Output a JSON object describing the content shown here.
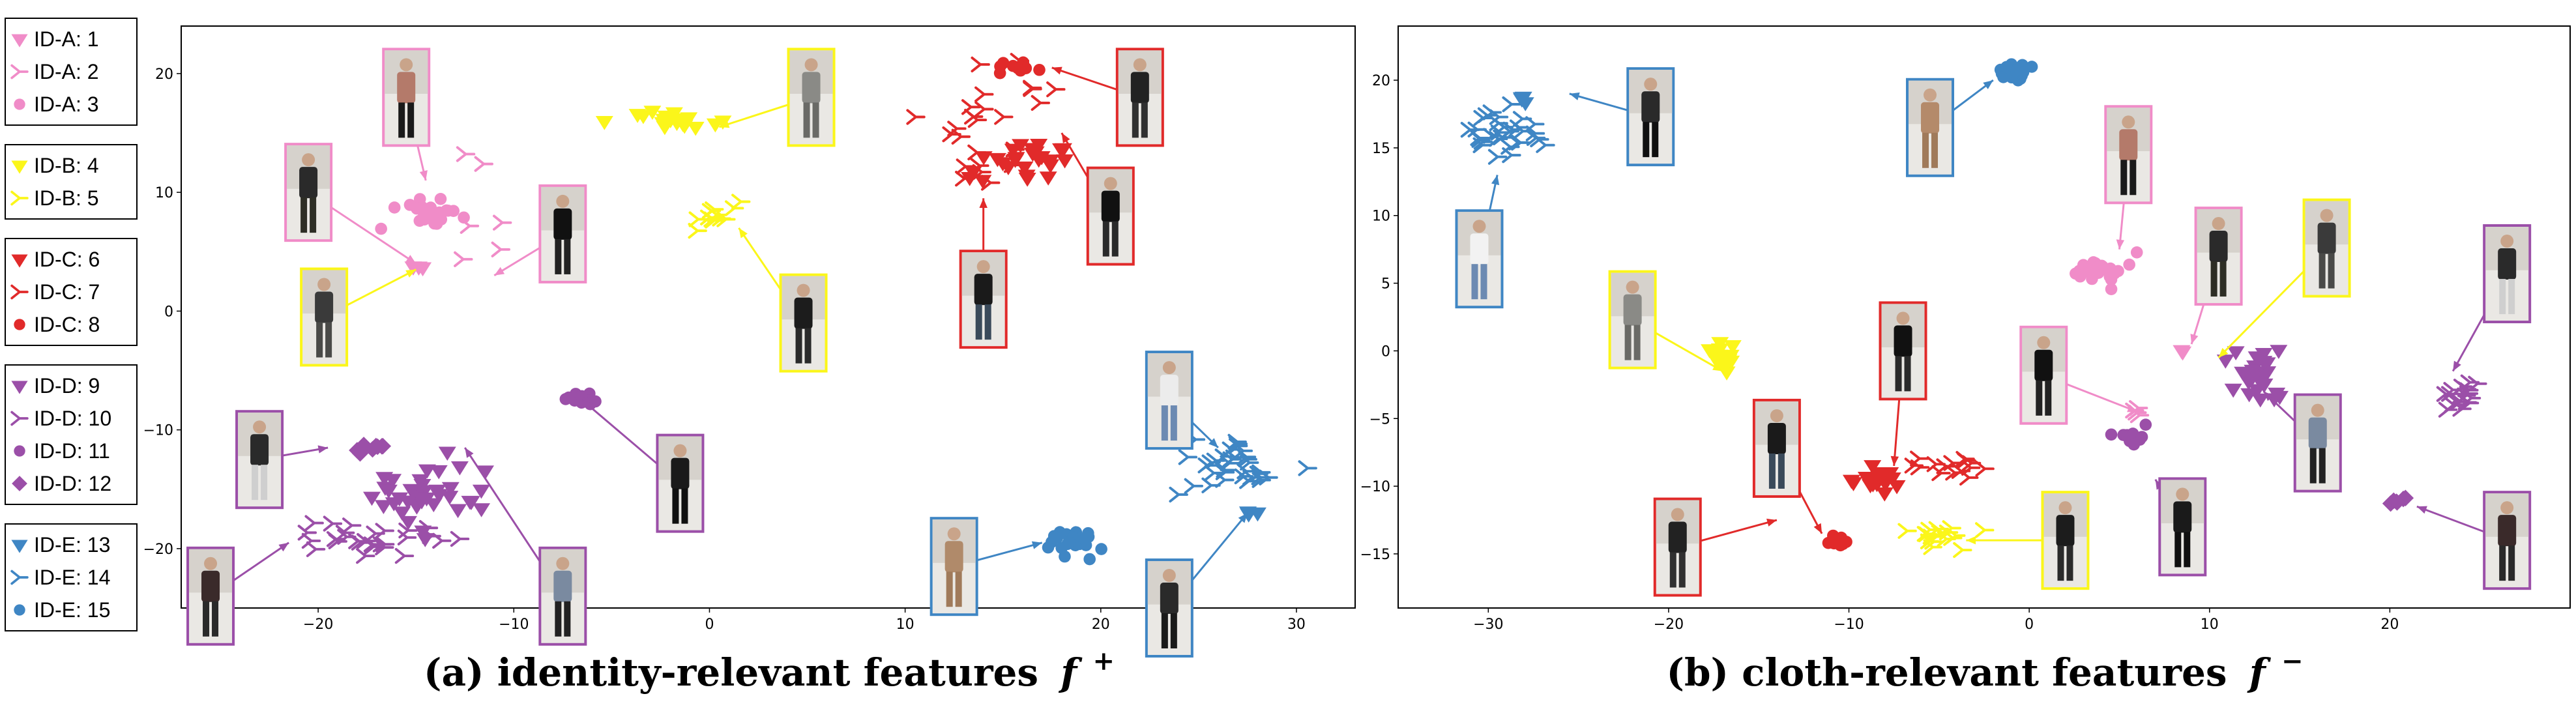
{
  "colors": {
    "A": "#f08cc8",
    "B": "#fbf61a",
    "C": "#e12a2a",
    "D": "#9b4fa8",
    "E": "#3f86c4"
  },
  "legend": [
    {
      "group": "A",
      "items": [
        {
          "label": "ID-A: 1",
          "marker": "tri-down"
        },
        {
          "label": "ID-A: 2",
          "marker": "tri-right"
        },
        {
          "label": "ID-A: 3",
          "marker": "circle"
        }
      ]
    },
    {
      "group": "B",
      "items": [
        {
          "label": "ID-B: 4",
          "marker": "tri-down"
        },
        {
          "label": "ID-B: 5",
          "marker": "tri-right"
        }
      ]
    },
    {
      "group": "C",
      "items": [
        {
          "label": "ID-C: 6",
          "marker": "tri-down"
        },
        {
          "label": "ID-C: 7",
          "marker": "tri-right"
        },
        {
          "label": "ID-C: 8",
          "marker": "circle"
        }
      ]
    },
    {
      "group": "D",
      "items": [
        {
          "label": "ID-D: 9",
          "marker": "tri-down"
        },
        {
          "label": "ID-D: 10",
          "marker": "tri-right"
        },
        {
          "label": "ID-D: 11",
          "marker": "circle"
        },
        {
          "label": "ID-D: 12",
          "marker": "diamond"
        }
      ]
    },
    {
      "group": "E",
      "items": [
        {
          "label": "ID-E: 13",
          "marker": "tri-down"
        },
        {
          "label": "ID-E: 14",
          "marker": "tri-right"
        },
        {
          "label": "ID-E: 15",
          "marker": "circle"
        }
      ]
    }
  ],
  "chart_data": [
    {
      "type": "scatter",
      "caption": "(a) identity-relevant features",
      "caption_symbol": "f",
      "caption_sup": "+",
      "xlim": [
        -27,
        33
      ],
      "ylim": [
        -25,
        24
      ],
      "xticks": [
        -20,
        -10,
        0,
        10,
        20,
        30
      ],
      "yticks": [
        -20,
        -10,
        0,
        10,
        20
      ],
      "series": [
        {
          "id": 1,
          "group": "A",
          "marker": "tri-down",
          "center": [
            -15,
            3.5
          ],
          "spread": [
            0.3,
            0.4
          ],
          "n": 3
        },
        {
          "id": 2,
          "group": "A",
          "marker": "tri-right",
          "center": [
            -11,
            7
          ],
          "spread": [
            2.8,
            5.5
          ],
          "n": 7
        },
        {
          "id": 3,
          "group": "A",
          "marker": "circle",
          "center": [
            -14.5,
            8.5
          ],
          "spread": [
            1.6,
            1.6
          ],
          "n": 22
        },
        {
          "id": 4,
          "group": "B",
          "marker": "tri-down",
          "center": [
            -2,
            16
          ],
          "spread": [
            2.0,
            0.9
          ],
          "n": 20
        },
        {
          "id": 5,
          "group": "B",
          "marker": "tri-right",
          "center": [
            0.5,
            8
          ],
          "spread": [
            1.2,
            1.2
          ],
          "n": 12
        },
        {
          "id": 6,
          "group": "C",
          "marker": "tri-down",
          "center": [
            16,
            12.5
          ],
          "spread": [
            2.4,
            1.6
          ],
          "n": 26
        },
        {
          "id": 7,
          "group": "C",
          "marker": "tri-right",
          "center": [
            14,
            15
          ],
          "spread": [
            2.4,
            4.5
          ],
          "n": 24
        },
        {
          "id": 8,
          "group": "C",
          "marker": "circle",
          "center": [
            15.8,
            20.5
          ],
          "spread": [
            1.0,
            0.5
          ],
          "n": 10
        },
        {
          "id": 9,
          "group": "D",
          "marker": "tri-down",
          "center": [
            -15,
            -15.5
          ],
          "spread": [
            3.2,
            2.5
          ],
          "n": 38
        },
        {
          "id": 10,
          "group": "D",
          "marker": "tri-right",
          "center": [
            -17,
            -19.5
          ],
          "spread": [
            3.5,
            1.3
          ],
          "n": 28
        },
        {
          "id": 11,
          "group": "D",
          "marker": "circle",
          "center": [
            -7,
            -7.5
          ],
          "spread": [
            1.2,
            0.8
          ],
          "n": 11
        },
        {
          "id": 12,
          "group": "D",
          "marker": "diamond",
          "center": [
            -17.5,
            -11.5
          ],
          "spread": [
            0.9,
            0.5
          ],
          "n": 9
        },
        {
          "id": 13,
          "group": "E",
          "marker": "tri-down",
          "center": [
            27.8,
            -17
          ],
          "spread": [
            0.4,
            0.2
          ],
          "n": 4
        },
        {
          "id": 14,
          "group": "E",
          "marker": "tri-right",
          "center": [
            27,
            -13
          ],
          "spread": [
            2.2,
            2.2
          ],
          "n": 34
        },
        {
          "id": 15,
          "group": "E",
          "marker": "circle",
          "center": [
            18.5,
            -19.5
          ],
          "spread": [
            1.3,
            0.9
          ],
          "n": 26
        }
      ]
    },
    {
      "type": "scatter",
      "caption": "(b) cloth-relevant features",
      "caption_symbol": "f",
      "caption_sup": "−",
      "xlim": [
        -35,
        30
      ],
      "ylim": [
        -19,
        24
      ],
      "xticks": [
        -30,
        -20,
        -10,
        0,
        10,
        20
      ],
      "yticks": [
        -15,
        -10,
        -5,
        0,
        5,
        10,
        15,
        20
      ],
      "series": [
        {
          "id": 1,
          "group": "A",
          "marker": "tri-down",
          "center": [
            8.5,
            0
          ],
          "spread": [
            0.2,
            0.2
          ],
          "n": 2
        },
        {
          "id": 2,
          "group": "A",
          "marker": "tri-right",
          "center": [
            6,
            -4.5
          ],
          "spread": [
            0.6,
            0.4
          ],
          "n": 4
        },
        {
          "id": 3,
          "group": "A",
          "marker": "circle",
          "center": [
            4,
            6
          ],
          "spread": [
            1.3,
            1.1
          ],
          "n": 24
        },
        {
          "id": 4,
          "group": "B",
          "marker": "tri-down",
          "center": [
            -17,
            -0.5
          ],
          "spread": [
            1.0,
            0.9
          ],
          "n": 17
        },
        {
          "id": 5,
          "group": "B",
          "marker": "tri-right",
          "center": [
            -5,
            -13.5
          ],
          "spread": [
            1.8,
            0.8
          ],
          "n": 18
        },
        {
          "id": 6,
          "group": "C",
          "marker": "tri-down",
          "center": [
            -8,
            -9.5
          ],
          "spread": [
            1.4,
            0.9
          ],
          "n": 22
        },
        {
          "id": 7,
          "group": "C",
          "marker": "tri-right",
          "center": [
            -4.5,
            -8.5
          ],
          "spread": [
            2.0,
            0.9
          ],
          "n": 15
        },
        {
          "id": 8,
          "group": "C",
          "marker": "circle",
          "center": [
            -10.8,
            -14
          ],
          "spread": [
            0.5,
            0.4
          ],
          "n": 9
        },
        {
          "id": 9,
          "group": "D",
          "marker": "tri-down",
          "center": [
            12.5,
            -2
          ],
          "spread": [
            1.6,
            1.6
          ],
          "n": 26
        },
        {
          "id": 10,
          "group": "D",
          "marker": "tri-right",
          "center": [
            24,
            -3.5
          ],
          "spread": [
            1.5,
            1.5
          ],
          "n": 18
        },
        {
          "id": 11,
          "group": "D",
          "marker": "circle",
          "center": [
            6,
            -6.5
          ],
          "spread": [
            1.1,
            0.8
          ],
          "n": 9
        },
        {
          "id": 12,
          "group": "D",
          "marker": "diamond",
          "center": [
            20.5,
            -11
          ],
          "spread": [
            0.7,
            0.4
          ],
          "n": 6
        },
        {
          "id": 13,
          "group": "E",
          "marker": "tri-down",
          "center": [
            -28,
            18.5
          ],
          "spread": [
            0.3,
            0.3
          ],
          "n": 4
        },
        {
          "id": 14,
          "group": "E",
          "marker": "tri-right",
          "center": [
            -29,
            16
          ],
          "spread": [
            1.9,
            1.8
          ],
          "n": 32
        },
        {
          "id": 15,
          "group": "E",
          "marker": "circle",
          "center": [
            -0.8,
            20.6
          ],
          "spread": [
            0.9,
            0.5
          ],
          "n": 22
        }
      ]
    }
  ],
  "thumbnails": [
    {
      "chart": 0,
      "group": "A",
      "center": [
        -15.5,
        18
      ],
      "target": [
        -14.5,
        11
      ],
      "shirt": "#b47a6a",
      "pants": "#1a1a1a"
    },
    {
      "chart": 0,
      "group": "A",
      "center": [
        -20.5,
        10
      ],
      "target": [
        -15.0,
        4
      ],
      "shirt": "#2a2a2a",
      "pants": "#2e2e25"
    },
    {
      "chart": 0,
      "group": "B",
      "center": [
        -19.7,
        -0.5
      ],
      "target": [
        -15.0,
        3.5
      ],
      "shirt": "#3a3a3a",
      "pants": "#4a4a48"
    },
    {
      "chart": 0,
      "group": "A",
      "center": [
        -7.5,
        6.5
      ],
      "target": [
        -11.0,
        3.0
      ],
      "shirt": "#111111",
      "pants": "#222222"
    },
    {
      "chart": 0,
      "group": "B",
      "center": [
        5.2,
        18
      ],
      "target": [
        0.5,
        15.5
      ],
      "shirt": "#8a8a86",
      "pants": "#6a6a66"
    },
    {
      "chart": 0,
      "group": "B",
      "center": [
        4.8,
        -1
      ],
      "target": [
        1.5,
        7
      ],
      "shirt": "#1c1c1c",
      "pants": "#2a2a2a"
    },
    {
      "chart": 0,
      "group": "C",
      "center": [
        22,
        18
      ],
      "target": [
        17.5,
        20.5
      ],
      "shirt": "#222222",
      "pants": "#303030"
    },
    {
      "chart": 0,
      "group": "C",
      "center": [
        20.5,
        8
      ],
      "target": [
        18.0,
        15.0
      ],
      "shirt": "#111111",
      "pants": "#2a2a2a"
    },
    {
      "chart": 0,
      "group": "C",
      "center": [
        14,
        1
      ],
      "target": [
        14.0,
        9.5
      ],
      "shirt": "#1a1a1a",
      "pants": "#3a4a5a"
    },
    {
      "chart": 0,
      "group": "D",
      "center": [
        -23,
        -12.5
      ],
      "target": [
        -19.5,
        -11.5
      ],
      "shirt": "#2a2a2a",
      "pants": "#cfcfcf"
    },
    {
      "chart": 0,
      "group": "D",
      "center": [
        -25.5,
        -24
      ],
      "target": [
        -21.5,
        -19.5
      ],
      "shirt": "#3a2a2a",
      "pants": "#2a2a2a"
    },
    {
      "chart": 0,
      "group": "D",
      "center": [
        -7.5,
        -24
      ],
      "target": [
        -12.5,
        -11.5
      ],
      "shirt": "#7a8aa0",
      "pants": "#222222"
    },
    {
      "chart": 0,
      "group": "D",
      "center": [
        -1.5,
        -14.5
      ],
      "target": [
        -6.5,
        -7.5
      ],
      "shirt": "#1a1a1a",
      "pants": "#101010"
    },
    {
      "chart": 0,
      "group": "E",
      "center": [
        23.5,
        -7.5
      ],
      "target": [
        26.0,
        -11.5
      ],
      "shirt": "#ececec",
      "pants": "#6c8ab2"
    },
    {
      "chart": 0,
      "group": "E",
      "center": [
        12.5,
        -21.5
      ],
      "target": [
        17.0,
        -19.5
      ],
      "shirt": "#b08a6a",
      "pants": "#a07a5a"
    },
    {
      "chart": 0,
      "group": "E",
      "center": [
        23.5,
        -25
      ],
      "target": [
        27.5,
        -17.0
      ],
      "shirt": "#2a2a2a",
      "pants": "#1a1a1a"
    },
    {
      "chart": 1,
      "group": "E",
      "center": [
        -21,
        17.3
      ],
      "target": [
        -25.5,
        19.0
      ],
      "shirt": "#2a2a2a",
      "pants": "#101010"
    },
    {
      "chart": 1,
      "group": "E",
      "center": [
        -30.5,
        6.8
      ],
      "target": [
        -29.5,
        13.0
      ],
      "shirt": "#f2f2f2",
      "pants": "#6c8ab2"
    },
    {
      "chart": 1,
      "group": "E",
      "center": [
        -5.5,
        16.5
      ],
      "target": [
        -2.0,
        20.0
      ],
      "shirt": "#b48a6a",
      "pants": "#a07a5a"
    },
    {
      "chart": 1,
      "group": "A",
      "center": [
        5.5,
        14.5
      ],
      "target": [
        5.0,
        7.5
      ],
      "shirt": "#b47a6a",
      "pants": "#1a1a1a"
    },
    {
      "chart": 1,
      "group": "A",
      "center": [
        10.5,
        7
      ],
      "target": [
        9.0,
        0.5
      ],
      "shirt": "#2a2a2a",
      "pants": "#2e2e25"
    },
    {
      "chart": 1,
      "group": "B",
      "center": [
        16.5,
        7.6
      ],
      "target": [
        10.5,
        -0.5
      ],
      "shirt": "#3a3a3a",
      "pants": "#4a4a48"
    },
    {
      "chart": 1,
      "group": "A",
      "center": [
        0.8,
        -1.8
      ],
      "target": [
        6.0,
        -4.5
      ],
      "shirt": "#111111",
      "pants": "#222222"
    },
    {
      "chart": 1,
      "group": "B",
      "center": [
        -22,
        2.3
      ],
      "target": [
        -17.0,
        -1.5
      ],
      "shirt": "#8a8a86",
      "pants": "#6a6a66"
    },
    {
      "chart": 1,
      "group": "C",
      "center": [
        -7,
        0
      ],
      "target": [
        -7.5,
        -8.5
      ],
      "shirt": "#111111",
      "pants": "#2a2a2a"
    },
    {
      "chart": 1,
      "group": "C",
      "center": [
        -14,
        -7.2
      ],
      "target": [
        -11.5,
        -13.5
      ],
      "shirt": "#1a1a1a",
      "pants": "#3a4a5a"
    },
    {
      "chart": 1,
      "group": "C",
      "center": [
        -19.5,
        -14.5
      ],
      "target": [
        -14.0,
        -12.5
      ],
      "shirt": "#222222",
      "pants": "#303030"
    },
    {
      "chart": 1,
      "group": "B",
      "center": [
        2,
        -14
      ],
      "target": [
        -3.5,
        -14.0
      ],
      "shirt": "#1c1c1c",
      "pants": "#2a2a2a"
    },
    {
      "chart": 1,
      "group": "D",
      "center": [
        26.5,
        5.7
      ],
      "target": [
        23.5,
        -1.5
      ],
      "shirt": "#2a2a2a",
      "pants": "#cfcfcf"
    },
    {
      "chart": 1,
      "group": "D",
      "center": [
        16,
        -6.8
      ],
      "target": [
        13.0,
        -3.0
      ],
      "shirt": "#7a8aa0",
      "pants": "#222222"
    },
    {
      "chart": 1,
      "group": "D",
      "center": [
        8.5,
        -13
      ],
      "target": [
        7.0,
        -9.5
      ],
      "shirt": "#1a1a1a",
      "pants": "#101010"
    },
    {
      "chart": 1,
      "group": "D",
      "center": [
        26.5,
        -14
      ],
      "target": [
        21.5,
        -11.5
      ],
      "shirt": "#3a2a2a",
      "pants": "#2a2a2a"
    }
  ]
}
